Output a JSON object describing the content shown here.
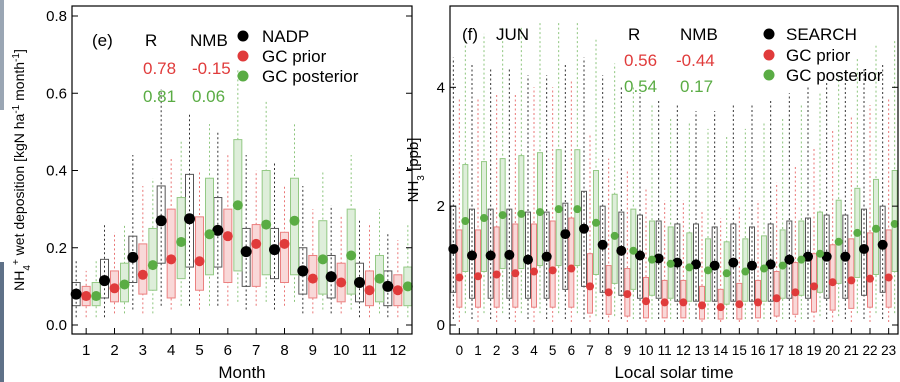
{
  "chart_data": [
    {
      "type": "boxplot",
      "panel": "(e)",
      "xlabel": "Month",
      "ylabel": "NH4+ wet deposition [kgN ha-1 month-1]",
      "ylabel_parts": {
        "a": "NH",
        "b": "4",
        "c": "+",
        "d": " wet deposition [kgN ha",
        "e": "-1",
        "f": " month",
        "g": "-1",
        "h": "]"
      },
      "ylim": [
        0,
        0.8
      ],
      "yticks": [
        "0.0",
        "0.2",
        "0.4",
        "0.6",
        "0.8"
      ],
      "categories": [
        "1",
        "2",
        "3",
        "4",
        "5",
        "6",
        "7",
        "8",
        "9",
        "10",
        "11",
        "12"
      ],
      "legend_placement": "top-right",
      "stats_header": {
        "r": "R",
        "nmb": "NMB"
      },
      "series": [
        {
          "name": "NADP",
          "color": "#000000",
          "points": [
            0.08,
            0.115,
            0.175,
            0.27,
            0.275,
            0.245,
            0.19,
            0.195,
            0.14,
            0.125,
            0.11,
            0.1
          ],
          "q1": [
            0.05,
            0.07,
            0.11,
            0.16,
            0.15,
            0.15,
            0.1,
            0.12,
            0.08,
            0.07,
            0.06,
            0.05
          ],
          "q3": [
            0.11,
            0.17,
            0.23,
            0.36,
            0.39,
            0.33,
            0.25,
            0.25,
            0.2,
            0.18,
            0.16,
            0.14
          ],
          "whisker_low": [
            0.02,
            0.02,
            0.04,
            0.05,
            0.05,
            0.05,
            0.04,
            0.04,
            0.03,
            0.03,
            0.02,
            0.02
          ],
          "whisker_high": [
            0.17,
            0.26,
            0.44,
            0.61,
            0.55,
            0.5,
            0.44,
            0.42,
            0.36,
            0.31,
            0.27,
            0.24
          ]
        },
        {
          "name": "GC prior",
          "color": "#e03b3b",
          "r": "0.78",
          "nmb": "-0.15",
          "points": [
            0.075,
            0.095,
            0.13,
            0.17,
            0.165,
            0.23,
            0.21,
            0.21,
            0.12,
            0.11,
            0.09,
            0.09
          ],
          "q1": [
            0.05,
            0.06,
            0.08,
            0.07,
            0.09,
            0.11,
            0.1,
            0.11,
            0.07,
            0.06,
            0.05,
            0.05
          ],
          "q3": [
            0.1,
            0.14,
            0.21,
            0.3,
            0.28,
            0.3,
            0.26,
            0.24,
            0.18,
            0.16,
            0.14,
            0.13
          ],
          "whisker_low": [
            0.02,
            0.03,
            0.03,
            0.04,
            0.04,
            0.05,
            0.05,
            0.05,
            0.03,
            0.03,
            0.02,
            0.02
          ],
          "whisker_high": [
            0.14,
            0.24,
            0.36,
            0.43,
            0.4,
            0.44,
            0.4,
            0.36,
            0.3,
            0.28,
            0.26,
            0.22
          ]
        },
        {
          "name": "GC posterior",
          "color": "#5aac44",
          "r": "0.81",
          "nmb": "0.06",
          "points": [
            0.075,
            0.105,
            0.155,
            0.215,
            0.235,
            0.31,
            0.26,
            0.27,
            0.17,
            0.18,
            0.12,
            0.1
          ],
          "q1": [
            0.05,
            0.06,
            0.09,
            0.12,
            0.13,
            0.14,
            0.13,
            0.13,
            0.08,
            0.08,
            0.06,
            0.05
          ],
          "q3": [
            0.11,
            0.16,
            0.25,
            0.33,
            0.38,
            0.48,
            0.4,
            0.38,
            0.27,
            0.3,
            0.18,
            0.15
          ],
          "whisker_low": [
            0.02,
            0.03,
            0.03,
            0.05,
            0.05,
            0.06,
            0.06,
            0.06,
            0.04,
            0.04,
            0.03,
            0.02
          ],
          "whisker_high": [
            0.17,
            0.26,
            0.38,
            0.48,
            0.52,
            0.66,
            0.58,
            0.52,
            0.4,
            0.44,
            0.3,
            0.26
          ]
        }
      ]
    },
    {
      "type": "boxplot",
      "panel": "(f)",
      "annotation": "JUN",
      "xlabel": "Local solar time",
      "ylabel": "NH3 [ppb]",
      "ylabel_parts": {
        "a": "NH",
        "b": "3",
        "c": " [ppb]"
      },
      "ylim": [
        0,
        5.2
      ],
      "yticks": [
        "0",
        "2",
        "4"
      ],
      "yticks_values": [
        0,
        2,
        4
      ],
      "categories": [
        "0",
        "1",
        "2",
        "3",
        "4",
        "5",
        "6",
        "7",
        "8",
        "9",
        "10",
        "11",
        "12",
        "13",
        "14",
        "15",
        "16",
        "17",
        "18",
        "19",
        "20",
        "21",
        "22",
        "23"
      ],
      "legend_placement": "top-right",
      "stats_header": {
        "r": "R",
        "nmb": "NMB"
      },
      "series": [
        {
          "name": "SEARCH",
          "color": "#000000",
          "points": [
            1.28,
            1.17,
            1.17,
            1.18,
            1.1,
            1.15,
            1.53,
            1.62,
            1.35,
            1.25,
            1.17,
            1.12,
            1.05,
            1.02,
            1.0,
            1.05,
            1.0,
            1.02,
            1.1,
            1.15,
            1.15,
            1.15,
            1.28,
            1.35
          ],
          "q1": [
            0.55,
            0.45,
            0.45,
            0.45,
            0.45,
            0.45,
            0.6,
            0.65,
            0.55,
            0.5,
            0.45,
            0.45,
            0.4,
            0.4,
            0.4,
            0.4,
            0.4,
            0.4,
            0.45,
            0.45,
            0.45,
            0.45,
            0.5,
            0.55
          ],
          "q3": [
            2.0,
            1.95,
            1.95,
            1.95,
            1.9,
            1.9,
            2.05,
            2.25,
            2.0,
            1.9,
            1.85,
            1.75,
            1.7,
            1.7,
            1.65,
            1.7,
            1.65,
            1.7,
            1.75,
            1.8,
            1.85,
            1.85,
            1.95,
            2.0
          ],
          "whisker_low": [
            0.1,
            0.1,
            0.1,
            0.1,
            0.1,
            0.1,
            0.1,
            0.1,
            0.1,
            0.1,
            0.1,
            0.1,
            0.1,
            0.1,
            0.1,
            0.1,
            0.1,
            0.1,
            0.1,
            0.1,
            0.1,
            0.1,
            0.1,
            0.1
          ],
          "whisker_high": [
            4.5,
            4.4,
            4.3,
            4.3,
            4.2,
            4.2,
            4.4,
            4.5,
            4.2,
            4.0,
            3.9,
            3.8,
            3.7,
            3.6,
            3.6,
            3.7,
            3.7,
            3.8,
            3.9,
            4.0,
            4.1,
            4.2,
            4.3,
            4.4
          ]
        },
        {
          "name": "GC prior",
          "color": "#e03b3b",
          "r": "0.56",
          "nmb": "-0.44",
          "points": [
            0.8,
            0.82,
            0.85,
            0.87,
            0.9,
            0.92,
            0.95,
            0.65,
            0.55,
            0.52,
            0.4,
            0.38,
            0.38,
            0.33,
            0.3,
            0.35,
            0.38,
            0.45,
            0.55,
            0.65,
            0.72,
            0.75,
            0.78,
            0.8
          ],
          "q1": [
            0.3,
            0.3,
            0.3,
            0.3,
            0.3,
            0.3,
            0.3,
            0.2,
            0.18,
            0.15,
            0.12,
            0.12,
            0.12,
            0.1,
            0.1,
            0.1,
            0.12,
            0.15,
            0.18,
            0.22,
            0.25,
            0.28,
            0.3,
            0.3
          ],
          "q3": [
            1.6,
            1.6,
            1.65,
            1.7,
            1.7,
            1.75,
            1.8,
            1.2,
            1.0,
            0.95,
            0.8,
            0.75,
            0.75,
            0.65,
            0.6,
            0.7,
            0.75,
            0.9,
            1.05,
            1.2,
            1.35,
            1.45,
            1.55,
            1.6
          ],
          "whisker_low": [
            0.05,
            0.05,
            0.05,
            0.05,
            0.05,
            0.05,
            0.05,
            0.05,
            0.05,
            0.05,
            0.05,
            0.05,
            0.05,
            0.05,
            0.05,
            0.05,
            0.05,
            0.05,
            0.05,
            0.05,
            0.05,
            0.05,
            0.05,
            0.05
          ],
          "whisker_high": [
            3.8,
            3.8,
            3.9,
            3.9,
            4.0,
            4.0,
            4.1,
            3.2,
            2.8,
            2.6,
            2.3,
            2.1,
            2.1,
            1.9,
            1.8,
            2.0,
            2.1,
            2.4,
            2.7,
            3.0,
            3.3,
            3.5,
            3.7,
            3.8
          ]
        },
        {
          "name": "GC posterior",
          "color": "#5aac44",
          "r": "0.54",
          "nmb": "0.17",
          "points": [
            1.75,
            1.8,
            1.85,
            1.87,
            1.9,
            1.95,
            1.95,
            1.72,
            1.5,
            1.25,
            1.1,
            1.03,
            0.97,
            0.92,
            0.87,
            0.9,
            0.95,
            1.0,
            1.1,
            1.2,
            1.4,
            1.55,
            1.62,
            1.7
          ],
          "q1": [
            0.9,
            0.9,
            0.95,
            0.95,
            1.0,
            1.0,
            1.0,
            0.85,
            0.7,
            0.6,
            0.5,
            0.45,
            0.4,
            0.4,
            0.35,
            0.4,
            0.4,
            0.45,
            0.5,
            0.55,
            0.7,
            0.8,
            0.85,
            0.9
          ],
          "q3": [
            2.7,
            2.75,
            2.8,
            2.85,
            2.9,
            2.95,
            2.95,
            2.6,
            2.2,
            1.95,
            1.75,
            1.65,
            1.55,
            1.45,
            1.4,
            1.45,
            1.5,
            1.6,
            1.75,
            1.9,
            2.1,
            2.3,
            2.45,
            2.6
          ],
          "whisker_low": [
            0.2,
            0.2,
            0.2,
            0.2,
            0.2,
            0.2,
            0.2,
            0.15,
            0.15,
            0.1,
            0.1,
            0.1,
            0.1,
            0.1,
            0.1,
            0.1,
            0.1,
            0.1,
            0.1,
            0.15,
            0.15,
            0.2,
            0.2,
            0.2
          ],
          "whisker_high": [
            4.8,
            4.9,
            5.0,
            5.0,
            5.1,
            5.1,
            5.1,
            4.8,
            4.4,
            4.0,
            3.7,
            3.5,
            3.4,
            3.3,
            3.2,
            3.3,
            3.4,
            3.5,
            3.7,
            3.9,
            4.2,
            4.5,
            4.7,
            4.8
          ]
        }
      ]
    }
  ]
}
